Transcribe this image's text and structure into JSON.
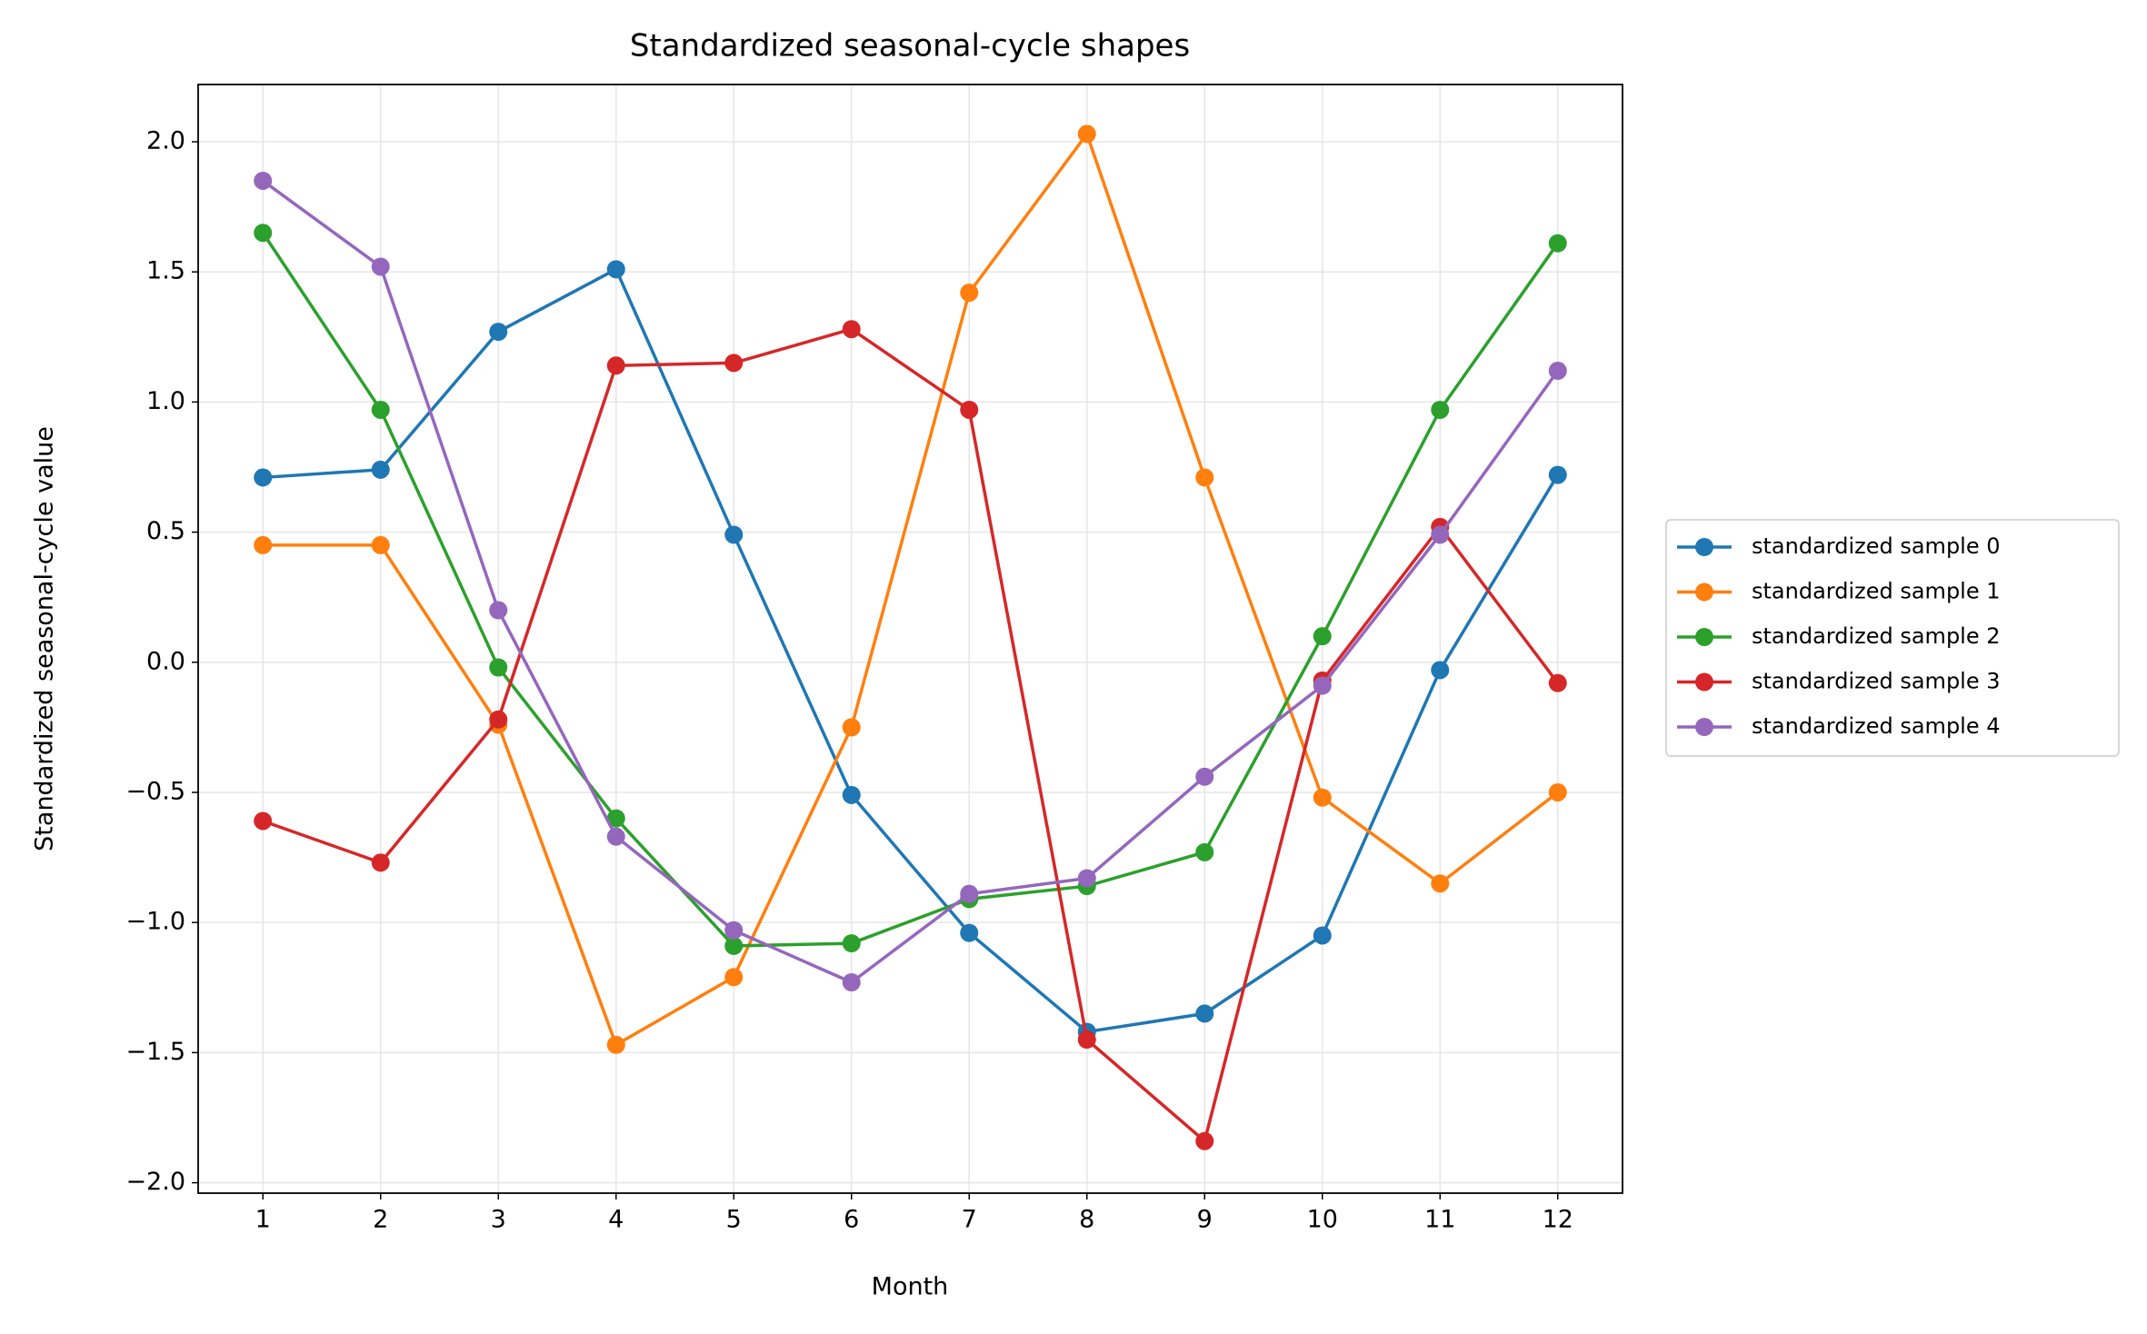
{
  "chart_data": {
    "type": "line",
    "title": "Standardized seasonal-cycle shapes",
    "xlabel": "Month",
    "ylabel": "Standardized seasonal-cycle value",
    "x": [
      1,
      2,
      3,
      4,
      5,
      6,
      7,
      8,
      9,
      10,
      11,
      12
    ],
    "series": [
      {
        "name": "standardized sample 0",
        "color": "#1f77b4",
        "values": [
          0.71,
          0.74,
          1.27,
          1.51,
          0.49,
          -0.51,
          -1.04,
          -1.42,
          -1.35,
          -1.05,
          -0.03,
          0.72
        ]
      },
      {
        "name": "standardized sample 1",
        "color": "#ff7f0e",
        "values": [
          0.45,
          0.45,
          -0.24,
          -1.47,
          -1.21,
          -0.25,
          1.42,
          2.03,
          0.71,
          -0.52,
          -0.85,
          -0.5
        ]
      },
      {
        "name": "standardized sample 2",
        "color": "#2ca02c",
        "values": [
          1.65,
          0.97,
          -0.02,
          -0.6,
          -1.09,
          -1.08,
          -0.91,
          -0.86,
          -0.73,
          0.1,
          0.97,
          1.61
        ]
      },
      {
        "name": "standardized sample 3",
        "color": "#d62728",
        "values": [
          -0.61,
          -0.77,
          -0.22,
          1.14,
          1.15,
          1.28,
          0.97,
          -1.45,
          -1.84,
          -0.07,
          0.52,
          -0.08
        ]
      },
      {
        "name": "standardized sample 4",
        "color": "#9467bd",
        "values": [
          1.85,
          1.52,
          0.2,
          -0.67,
          -1.03,
          -1.23,
          -0.89,
          -0.83,
          -0.44,
          -0.09,
          0.49,
          1.12
        ]
      }
    ],
    "xlim": [
      0.45,
      12.55
    ],
    "ylim": [
      -2.04,
      2.22
    ],
    "xticks": [
      1,
      2,
      3,
      4,
      5,
      6,
      7,
      8,
      9,
      10,
      11,
      12
    ],
    "yticks": [
      {
        "value": -2.0,
        "label": "−2.0"
      },
      {
        "value": -1.5,
        "label": "−1.5"
      },
      {
        "value": -1.0,
        "label": "−1.0"
      },
      {
        "value": -0.5,
        "label": "−0.5"
      },
      {
        "value": 0.0,
        "label": "0.0"
      },
      {
        "value": 0.5,
        "label": "0.5"
      },
      {
        "value": 1.0,
        "label": "1.0"
      },
      {
        "value": 1.5,
        "label": "1.5"
      },
      {
        "value": 2.0,
        "label": "2.0"
      }
    ],
    "grid": true,
    "legend": "outside right"
  }
}
